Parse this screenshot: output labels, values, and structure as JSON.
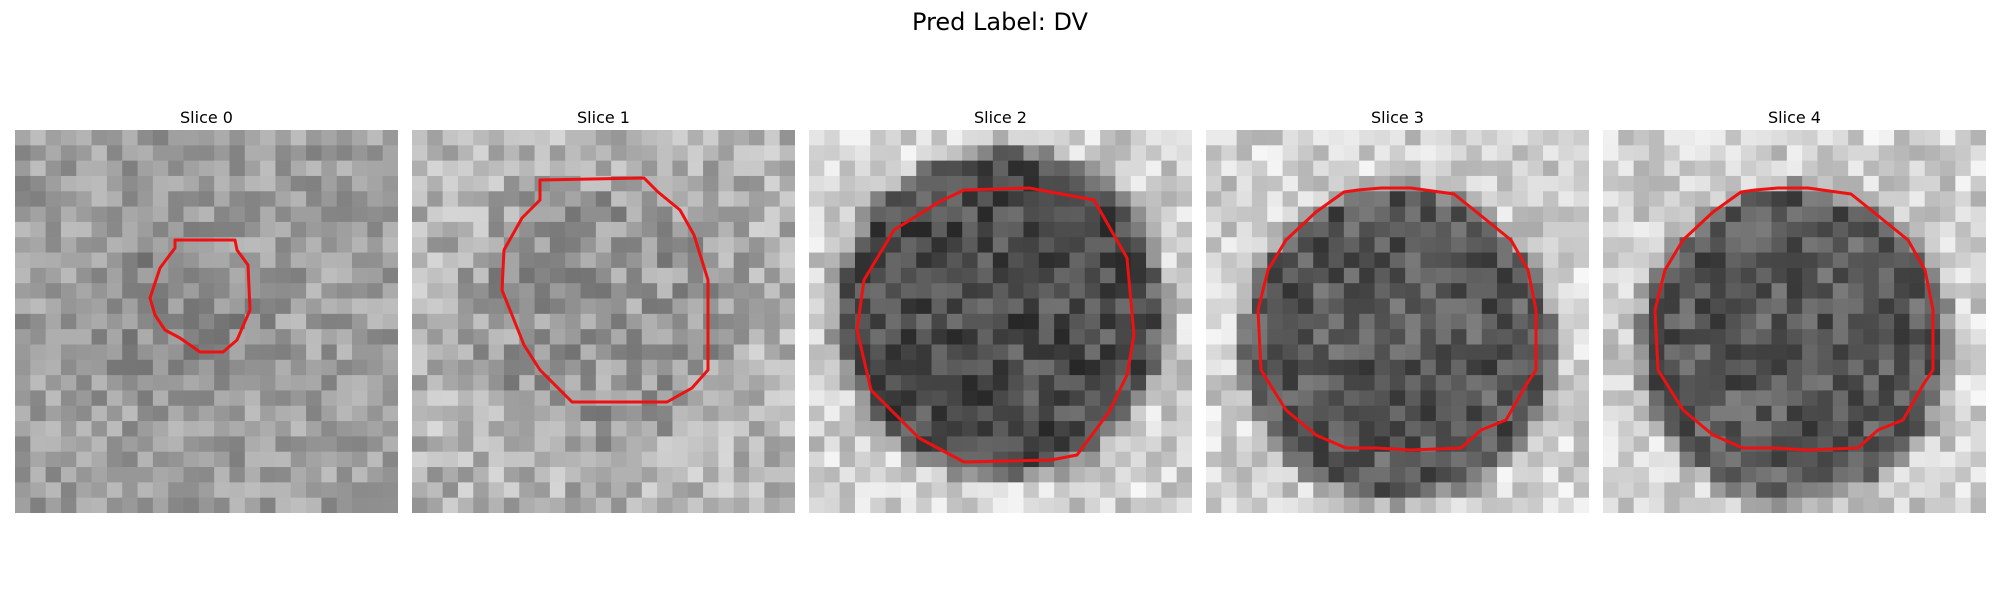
{
  "figure": {
    "suptitle": "Pred Label: DV",
    "panels": [
      {
        "title": "Slice 0",
        "mask": "small-blob"
      },
      {
        "title": "Slice 1",
        "mask": "octagon"
      },
      {
        "title": "Slice 2",
        "mask": "round"
      },
      {
        "title": "Slice 3",
        "mask": "round"
      },
      {
        "title": "Slice 4",
        "mask": "round"
      }
    ],
    "colormap": "gray",
    "contour_color": "#ee1111"
  }
}
